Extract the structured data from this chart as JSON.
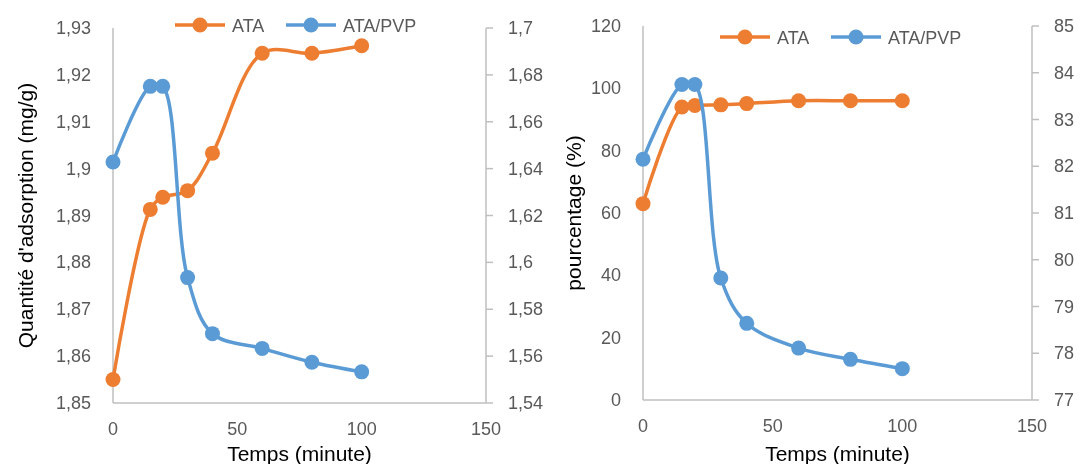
{
  "chart_data": [
    {
      "type": "line",
      "xlabel": "Temps (minute)",
      "ylabel": "Quantité d'adsorption (mg/g)",
      "xlim": [
        0,
        150
      ],
      "xticks": [
        0,
        50,
        100,
        150
      ],
      "ylim": [
        1.85,
        1.93
      ],
      "yticks": [
        {
          "value": 1.85,
          "label": "1,85"
        },
        {
          "value": 1.86,
          "label": "1,86"
        },
        {
          "value": 1.87,
          "label": "1,87"
        },
        {
          "value": 1.88,
          "label": "1,88"
        },
        {
          "value": 1.89,
          "label": "1,89"
        },
        {
          "value": 1.9,
          "label": "1,9"
        },
        {
          "value": 1.91,
          "label": "1,91"
        },
        {
          "value": 1.92,
          "label": "1,92"
        },
        {
          "value": 1.93,
          "label": "1,93"
        }
      ],
      "y2lim": [
        1.54,
        1.7
      ],
      "y2ticks": [
        {
          "value": 1.54,
          "label": "1,54"
        },
        {
          "value": 1.56,
          "label": "1,56"
        },
        {
          "value": 1.58,
          "label": "1,58"
        },
        {
          "value": 1.6,
          "label": "1,6"
        },
        {
          "value": 1.62,
          "label": "1,62"
        },
        {
          "value": 1.64,
          "label": "1,64"
        },
        {
          "value": 1.66,
          "label": "1,66"
        },
        {
          "value": 1.68,
          "label": "1,68"
        },
        {
          "value": 1.7,
          "label": "1,7"
        }
      ],
      "legend": "top",
      "marker": "circle",
      "grid": false,
      "series": [
        {
          "name": "ATA",
          "color": "#ed7d31",
          "x": [
            0,
            15,
            20,
            30,
            40,
            60,
            80,
            100
          ],
          "values": [
            1.855,
            1.8913,
            1.8939,
            1.8953,
            1.9033,
            1.9246,
            1.9246,
            1.9262
          ]
        },
        {
          "name": "ATA/PVP",
          "color": "#5b9bd5",
          "axis": "y2",
          "x": [
            0,
            15,
            20,
            30,
            40,
            60,
            80,
            100
          ],
          "values": [
            1.6428,
            1.6751,
            1.6751,
            1.5935,
            1.5696,
            1.5633,
            1.5574,
            1.5533
          ]
        }
      ]
    },
    {
      "type": "line",
      "xlabel": "Temps (minute)",
      "ylabel": "pourcentage (%)",
      "xlim": [
        0,
        150
      ],
      "xticks": [
        0,
        50,
        100,
        150
      ],
      "ylim": [
        0,
        120
      ],
      "yticks": [
        0,
        20,
        40,
        60,
        80,
        100,
        120
      ],
      "y2lim": [
        77,
        85
      ],
      "y2ticks": [
        77,
        78,
        79,
        80,
        81,
        82,
        83,
        84,
        85
      ],
      "legend": "top",
      "marker": "circle",
      "grid": false,
      "series": [
        {
          "name": "ATA",
          "color": "#ed7d31",
          "x": [
            0,
            15,
            20,
            30,
            40,
            60,
            80,
            100
          ],
          "values": [
            63.0,
            94.0,
            94.5,
            94.7,
            95.1,
            96.0,
            96.0,
            96.0
          ]
        },
        {
          "name": "ATA/PVP",
          "color": "#5b9bd5",
          "axis": "y2",
          "x": [
            0,
            15,
            20,
            30,
            40,
            60,
            80,
            100
          ],
          "values": [
            82.15,
            83.75,
            83.75,
            79.61,
            78.64,
            78.11,
            77.87,
            77.67
          ]
        }
      ]
    }
  ]
}
